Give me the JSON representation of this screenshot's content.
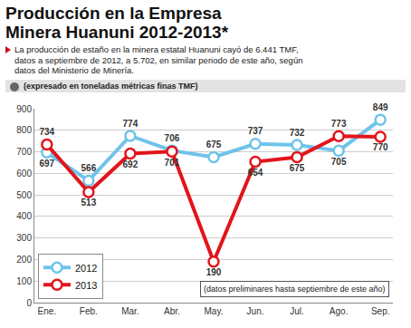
{
  "chart_data": {
    "type": "line",
    "title": "Producción en la Empresa Minera Huanuni 2012-2013*",
    "subtitle": "La producción de estaño en la minera estatal Huanuni cayó de 6.441 TMF, datos a septiembre de 2012, a 5.702, en similar periodo de este año, según datos del Ministerio de Minería.",
    "ylabel": "(expresado en toneladas métricas finas TMF)",
    "annotations": [
      "(datos preliminares hasta septiembre de este año)"
    ],
    "categories": [
      "Ene.",
      "Feb.",
      "Mar.",
      "Abr.",
      "May.",
      "Jun.",
      "Jul.",
      "Ago.",
      "Sep."
    ],
    "series": [
      {
        "name": "2012",
        "color": "#6fc3ea",
        "values": [
          697,
          566,
          774,
          706,
          675,
          737,
          732,
          705,
          849
        ]
      },
      {
        "name": "2013",
        "color": "#e3141b",
        "values": [
          734,
          513,
          692,
          701,
          190,
          654,
          675,
          773,
          770
        ]
      }
    ],
    "ylim": [
      0,
      900
    ],
    "yticks": [
      0,
      100,
      200,
      300,
      400,
      500,
      600,
      700,
      800,
      900
    ],
    "grid": true,
    "legend": "lower left",
    "data_labels": true,
    "marker": "circle",
    "line_style": "solid"
  }
}
